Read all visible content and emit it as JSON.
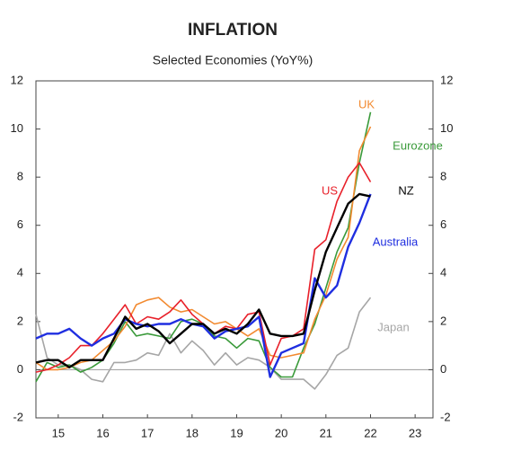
{
  "chart_data": {
    "type": "line",
    "title": "INFLATION",
    "subtitle": "Selected Economies (YoY%)",
    "x": [
      15.0,
      15.25,
      15.5,
      15.75,
      16.0,
      16.25,
      16.5,
      16.75,
      17.0,
      17.25,
      17.5,
      17.75,
      18.0,
      18.25,
      18.5,
      18.75,
      19.0,
      19.25,
      19.5,
      19.75,
      20.0,
      20.25,
      20.5,
      20.75,
      21.0,
      21.25,
      21.5,
      21.75,
      22.0,
      22.25,
      22.5
    ],
    "series": [
      {
        "name": "Japan",
        "color": "#a6a6a6",
        "values": [
          2.3,
          0.5,
          0.2,
          0.2,
          0.0,
          -0.4,
          -0.5,
          0.3,
          0.3,
          0.4,
          0.7,
          0.6,
          1.5,
          0.7,
          1.2,
          0.8,
          0.2,
          0.7,
          0.2,
          0.5,
          0.4,
          0.1,
          -0.4,
          -0.4,
          -0.4,
          -0.8,
          -0.2,
          0.6,
          0.9,
          2.4,
          3.0
        ]
      },
      {
        "name": "Eurozone",
        "color": "#3a9a3a",
        "values": [
          -0.5,
          0.3,
          0.1,
          0.2,
          -0.1,
          0.1,
          0.4,
          1.1,
          2.0,
          1.4,
          1.5,
          1.4,
          1.3,
          2.0,
          2.1,
          1.9,
          1.4,
          1.3,
          0.9,
          1.3,
          1.2,
          0.1,
          -0.3,
          -0.3,
          0.9,
          1.9,
          3.4,
          4.9,
          5.9,
          8.6,
          10.7
        ]
      },
      {
        "name": "UK",
        "color": "#f28a30",
        "values": [
          0.3,
          0.0,
          0.0,
          0.1,
          0.3,
          0.4,
          0.8,
          1.2,
          1.8,
          2.7,
          2.9,
          3.0,
          2.6,
          2.4,
          2.5,
          2.2,
          1.9,
          2.0,
          1.7,
          1.4,
          1.7,
          0.6,
          0.5,
          0.6,
          0.7,
          2.1,
          3.1,
          4.6,
          5.5,
          9.1,
          10.1
        ]
      },
      {
        "name": "US",
        "color": "#e8202a",
        "values": [
          -0.1,
          0.0,
          0.2,
          0.5,
          1.0,
          1.0,
          1.5,
          2.1,
          2.7,
          1.9,
          2.2,
          2.1,
          2.4,
          2.9,
          2.3,
          1.9,
          1.5,
          1.8,
          1.7,
          2.3,
          2.4,
          0.2,
          1.3,
          1.4,
          1.7,
          5.0,
          5.4,
          7.0,
          8.0,
          8.6,
          7.8
        ]
      },
      {
        "name": "Australia",
        "color": "#1f2ee0",
        "values": [
          1.3,
          1.5,
          1.5,
          1.7,
          1.3,
          1.0,
          1.3,
          1.5,
          2.1,
          1.9,
          1.8,
          1.9,
          1.9,
          2.1,
          1.9,
          1.8,
          1.3,
          1.6,
          1.7,
          1.8,
          2.2,
          -0.3,
          0.7,
          0.9,
          1.1,
          3.8,
          3.0,
          3.5,
          5.1,
          6.1,
          7.3
        ]
      },
      {
        "name": "NZ",
        "color": "#000000",
        "values": [
          0.3,
          0.4,
          0.4,
          0.1,
          0.4,
          0.4,
          0.4,
          1.3,
          2.2,
          1.7,
          1.9,
          1.6,
          1.1,
          1.5,
          1.9,
          1.9,
          1.5,
          1.7,
          1.5,
          1.9,
          2.5,
          1.5,
          1.4,
          1.4,
          1.5,
          3.3,
          4.9,
          5.9,
          6.9,
          7.3,
          7.2
        ]
      }
    ],
    "xlim": [
      15.0,
      23.9
    ],
    "xticks": [
      {
        "value": 15.5,
        "label": "15"
      },
      {
        "value": 16.5,
        "label": "16"
      },
      {
        "value": 17.5,
        "label": "17"
      },
      {
        "value": 18.5,
        "label": "18"
      },
      {
        "value": 19.5,
        "label": "19"
      },
      {
        "value": 20.5,
        "label": "20"
      },
      {
        "value": 21.5,
        "label": "21"
      },
      {
        "value": 22.5,
        "label": "22"
      },
      {
        "value": 23.5,
        "label": "23"
      }
    ],
    "ylim": [
      -2,
      12
    ],
    "yticks": [
      -2,
      0,
      2,
      4,
      6,
      8,
      10,
      12
    ],
    "y2lim": [
      -2,
      12
    ],
    "y2ticks": [
      -2,
      0,
      2,
      4,
      6,
      8,
      10,
      12
    ]
  }
}
